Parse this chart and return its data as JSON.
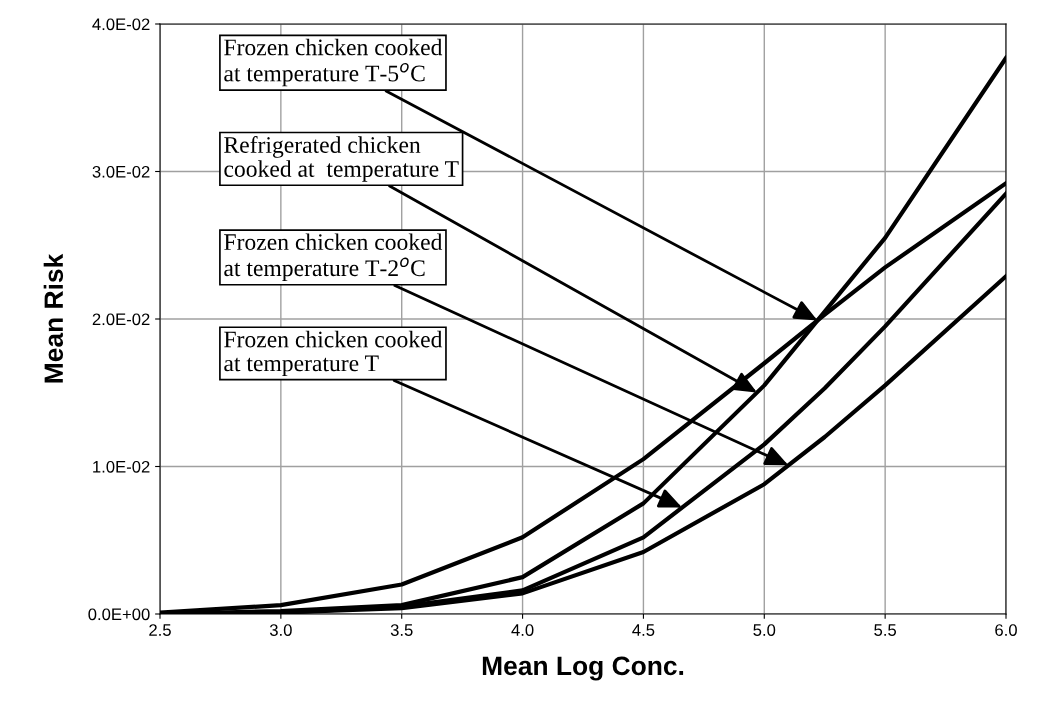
{
  "chart_data": {
    "type": "line",
    "xlabel": "Mean Log Conc.",
    "ylabel": "Mean Risk",
    "x": [
      2.5,
      3.0,
      3.5,
      4.0,
      4.5,
      5.0,
      5.25,
      5.5,
      6.0
    ],
    "series": [
      {
        "color": "#000000",
        "values": [
          0.0001,
          0.0006,
          0.002,
          0.0052,
          0.0105,
          0.017,
          0.0203,
          0.0235,
          0.0292
        ]
      },
      {
        "color": "#000000",
        "values": [
          0.0,
          0.0002,
          0.0006,
          0.0025,
          0.0075,
          0.0155,
          0.0205,
          0.0255,
          0.0377
        ]
      },
      {
        "color": "#000000",
        "values": [
          0.0,
          0.0001,
          0.0005,
          0.0016,
          0.0052,
          0.0115,
          0.0153,
          0.0195,
          0.0285
        ]
      },
      {
        "color": "#000000",
        "values": [
          0.0,
          0.0001,
          0.0004,
          0.0014,
          0.0042,
          0.0088,
          0.012,
          0.0155,
          0.0229
        ]
      }
    ],
    "xlim": [
      2.5,
      6.0
    ],
    "xticks": [
      {
        "value": 2.5,
        "label": "2.5"
      },
      {
        "value": 3.0,
        "label": "3.0"
      },
      {
        "value": 3.5,
        "label": "3.5"
      },
      {
        "value": 4.0,
        "label": "4.0"
      },
      {
        "value": 4.5,
        "label": "4.5"
      },
      {
        "value": 5.0,
        "label": "5.0"
      },
      {
        "value": 5.5,
        "label": "5.5"
      },
      {
        "value": 6.0,
        "label": "6.0"
      }
    ],
    "ylim": [
      0,
      0.04
    ],
    "yticks": [
      {
        "value": 0,
        "label": "0.0E+00"
      },
      {
        "value": 0.01,
        "label": "1.0E-02"
      },
      {
        "value": 0.02,
        "label": "2.0E-02"
      },
      {
        "value": 0.03,
        "label": "3.0E-02"
      },
      {
        "value": 0.04,
        "label": "4.0E-02"
      }
    ],
    "grid": true,
    "legend": false,
    "marker": "none",
    "line_style": "solid",
    "annotations": [
      {
        "text": "Frozen chicken cooked\nat temperature T-5$^{o}$C",
        "x": 5.22,
        "y": 0.0199
      },
      {
        "text": "Refrigerated chicken\ncooked at  temperature T",
        "x": 4.97,
        "y": 0.01502
      },
      {
        "text": "Frozen chicken cooked\nat temperature T-2$^{o}$C",
        "x": 5.1,
        "y": 0.01008
      },
      {
        "text": "Frozen chicken cooked\nat temperature T",
        "x": 4.66,
        "y": 0.00722
      }
    ]
  }
}
